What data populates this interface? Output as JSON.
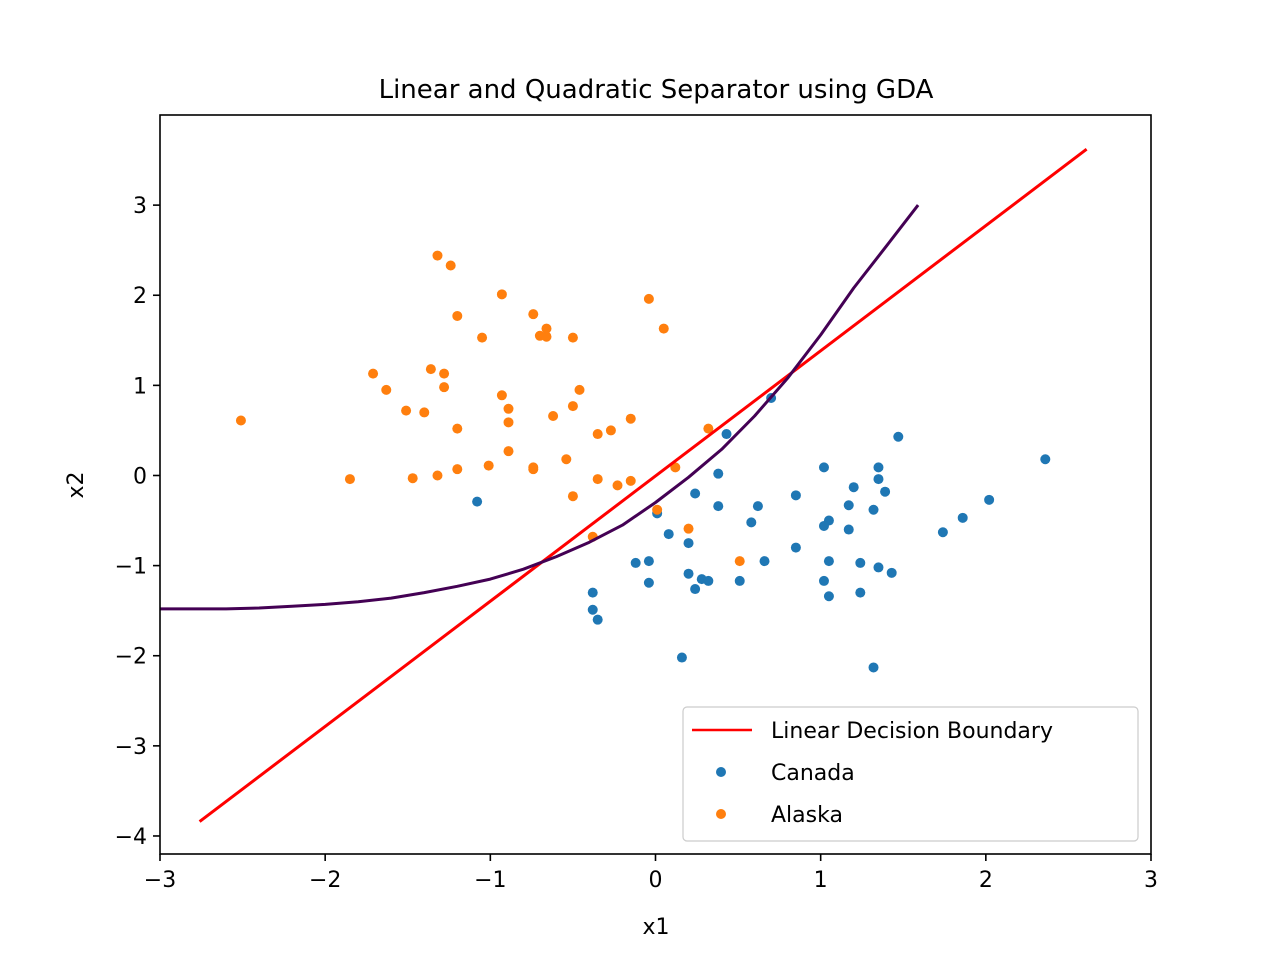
{
  "chart_data": {
    "type": "scatter",
    "title": "Linear and Quadratic Separator using GDA",
    "xlabel": "x1",
    "ylabel": "x2",
    "xlim": [
      -3,
      3
    ],
    "ylim": [
      -4.2,
      4.0
    ],
    "xticks": [
      -3,
      -2,
      -1,
      0,
      1,
      2,
      3
    ],
    "yticks": [
      -4,
      -3,
      -2,
      -1,
      0,
      1,
      2,
      3
    ],
    "grid": false,
    "legend_position": "lower right",
    "legend": [
      {
        "label": "Linear Decision Boundary",
        "kind": "line",
        "color": "#ff0000"
      },
      {
        "label": "Canada",
        "kind": "marker",
        "color": "#1f77b4"
      },
      {
        "label": "Alaska",
        "kind": "marker",
        "color": "#ff7f0e"
      }
    ],
    "series": [
      {
        "name": "Canada",
        "kind": "scatter",
        "color": "#1f77b4",
        "points": [
          [
            -1.08,
            -0.29
          ],
          [
            0.7,
            0.86
          ],
          [
            0.43,
            0.46
          ],
          [
            2.36,
            0.18
          ],
          [
            1.47,
            0.43
          ],
          [
            1.02,
            0.09
          ],
          [
            1.35,
            0.09
          ],
          [
            1.35,
            -0.04
          ],
          [
            1.39,
            -0.18
          ],
          [
            1.2,
            -0.13
          ],
          [
            1.17,
            -0.33
          ],
          [
            1.32,
            -0.38
          ],
          [
            1.05,
            -0.5
          ],
          [
            1.02,
            -0.56
          ],
          [
            1.17,
            -0.6
          ],
          [
            0.85,
            -0.22
          ],
          [
            0.62,
            -0.34
          ],
          [
            0.58,
            -0.52
          ],
          [
            0.38,
            0.02
          ],
          [
            0.38,
            -0.34
          ],
          [
            0.24,
            -0.2
          ],
          [
            0.01,
            -0.42
          ],
          [
            0.08,
            -0.65
          ],
          [
            0.2,
            -0.75
          ],
          [
            -0.12,
            -0.97
          ],
          [
            -0.04,
            -0.95
          ],
          [
            -0.04,
            -1.19
          ],
          [
            0.2,
            -1.09
          ],
          [
            0.28,
            -1.15
          ],
          [
            0.32,
            -1.17
          ],
          [
            0.24,
            -1.26
          ],
          [
            0.51,
            -1.17
          ],
          [
            0.66,
            -0.95
          ],
          [
            0.85,
            -0.8
          ],
          [
            1.05,
            -0.95
          ],
          [
            1.24,
            -0.97
          ],
          [
            1.35,
            -1.02
          ],
          [
            1.43,
            -1.08
          ],
          [
            1.02,
            -1.17
          ],
          [
            1.05,
            -1.34
          ],
          [
            1.24,
            -1.3
          ],
          [
            -0.38,
            -1.3
          ],
          [
            -0.38,
            -1.49
          ],
          [
            -0.35,
            -1.6
          ],
          [
            0.16,
            -2.02
          ],
          [
            1.32,
            -2.13
          ],
          [
            1.74,
            -0.63
          ],
          [
            1.86,
            -0.47
          ],
          [
            2.02,
            -0.27
          ]
        ]
      },
      {
        "name": "Alaska",
        "kind": "scatter",
        "color": "#ff7f0e",
        "points": [
          [
            -2.51,
            0.61
          ],
          [
            -1.85,
            -0.04
          ],
          [
            -1.71,
            1.13
          ],
          [
            -1.63,
            0.95
          ],
          [
            -1.51,
            0.72
          ],
          [
            -1.47,
            -0.03
          ],
          [
            -1.4,
            0.7
          ],
          [
            -1.36,
            1.18
          ],
          [
            -1.32,
            0.0
          ],
          [
            -1.28,
            1.13
          ],
          [
            -1.28,
            0.98
          ],
          [
            -1.32,
            2.44
          ],
          [
            -1.24,
            2.33
          ],
          [
            -1.2,
            1.77
          ],
          [
            -1.2,
            0.52
          ],
          [
            -1.2,
            0.07
          ],
          [
            -1.05,
            1.53
          ],
          [
            -1.01,
            0.11
          ],
          [
            -0.93,
            2.01
          ],
          [
            -0.93,
            0.89
          ],
          [
            -0.89,
            0.74
          ],
          [
            -0.89,
            0.59
          ],
          [
            -0.89,
            0.27
          ],
          [
            -0.74,
            1.79
          ],
          [
            -0.74,
            0.07
          ],
          [
            -0.74,
            0.09
          ],
          [
            -0.7,
            1.55
          ],
          [
            -0.66,
            1.63
          ],
          [
            -0.66,
            1.54
          ],
          [
            -0.62,
            0.66
          ],
          [
            -0.54,
            0.18
          ],
          [
            -0.5,
            1.53
          ],
          [
            -0.5,
            0.77
          ],
          [
            -0.5,
            -0.23
          ],
          [
            -0.46,
            0.95
          ],
          [
            -0.38,
            -0.68
          ],
          [
            -0.35,
            0.46
          ],
          [
            -0.35,
            -0.04
          ],
          [
            -0.27,
            0.5
          ],
          [
            -0.23,
            -0.11
          ],
          [
            -0.15,
            0.63
          ],
          [
            -0.15,
            -0.06
          ],
          [
            -0.04,
            1.96
          ],
          [
            0.01,
            -0.38
          ],
          [
            0.05,
            1.63
          ],
          [
            0.12,
            0.09
          ],
          [
            0.2,
            -0.59
          ],
          [
            0.32,
            0.52
          ],
          [
            0.51,
            -0.95
          ]
        ]
      },
      {
        "name": "Linear Decision Boundary",
        "kind": "line",
        "color": "#ff0000",
        "points": [
          [
            -2.76,
            -3.84
          ],
          [
            2.61,
            3.62
          ]
        ]
      },
      {
        "name": "",
        "kind": "curve",
        "color": "#440154",
        "points": [
          [
            -3.0,
            -1.48
          ],
          [
            -2.8,
            -1.48
          ],
          [
            -2.6,
            -1.48
          ],
          [
            -2.4,
            -1.47
          ],
          [
            -2.2,
            -1.45
          ],
          [
            -2.0,
            -1.43
          ],
          [
            -1.8,
            -1.4
          ],
          [
            -1.6,
            -1.36
          ],
          [
            -1.4,
            -1.3
          ],
          [
            -1.2,
            -1.23
          ],
          [
            -1.0,
            -1.15
          ],
          [
            -0.8,
            -1.04
          ],
          [
            -0.6,
            -0.9
          ],
          [
            -0.4,
            -0.74
          ],
          [
            -0.2,
            -0.55
          ],
          [
            0.0,
            -0.3
          ],
          [
            0.2,
            -0.02
          ],
          [
            0.4,
            0.29
          ],
          [
            0.6,
            0.66
          ],
          [
            0.8,
            1.08
          ],
          [
            1.0,
            1.56
          ],
          [
            1.2,
            2.08
          ],
          [
            1.4,
            2.55
          ],
          [
            1.59,
            3.0
          ]
        ]
      }
    ]
  }
}
